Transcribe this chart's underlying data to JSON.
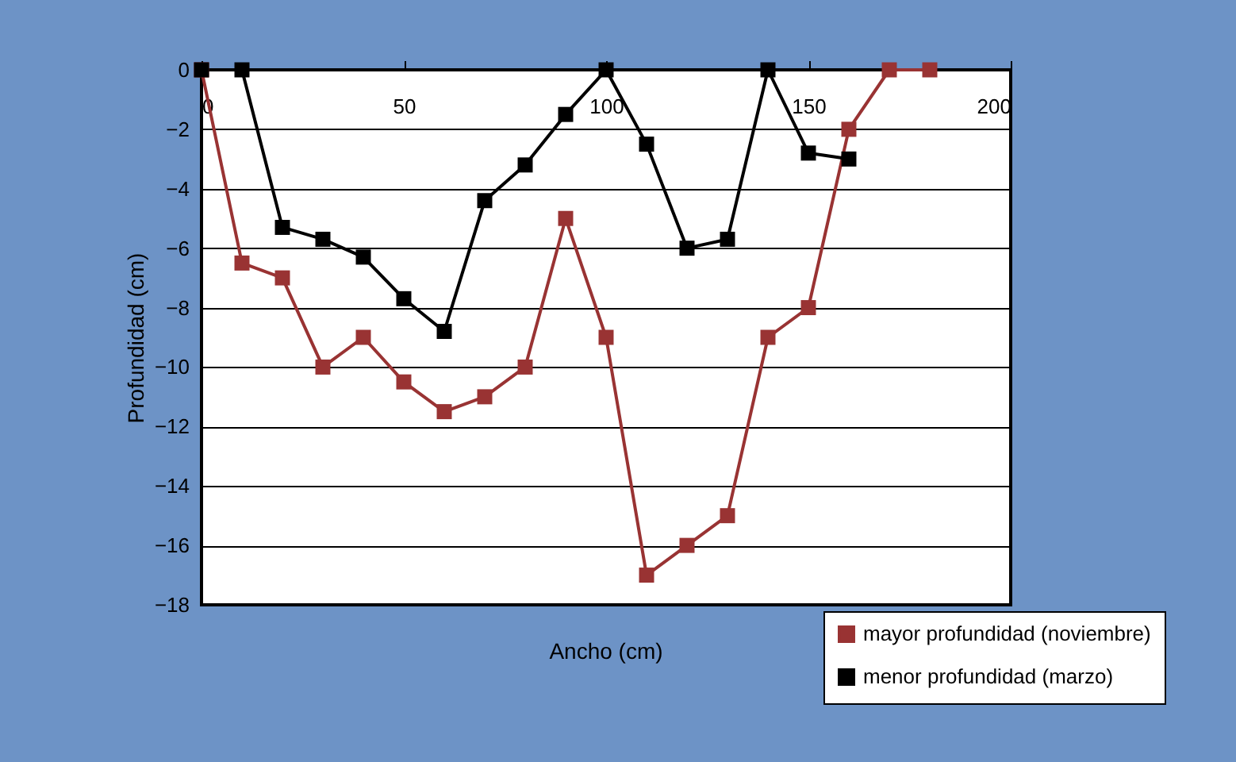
{
  "chart_data": {
    "type": "line",
    "xlabel": "Ancho (cm)",
    "ylabel": "Profundidad (cm)",
    "xlim": [
      0,
      200
    ],
    "xticks": [
      0,
      50,
      100,
      150,
      200
    ],
    "ylim": [
      -18,
      0
    ],
    "yticks": [
      0,
      -2,
      -4,
      -6,
      -8,
      -10,
      -12,
      -14,
      -16,
      -18
    ],
    "grid": "y",
    "legend": "bottom right",
    "marker": "square",
    "line_style": "solid",
    "series": [
      {
        "name": "mayor profundidad (noviembre)",
        "color": "#993333",
        "x": [
          0,
          10,
          20,
          30,
          40,
          50,
          60,
          70,
          80,
          90,
          100,
          110,
          120,
          130,
          140,
          150,
          160,
          170,
          180
        ],
        "values": [
          0,
          -6.5,
          -7,
          -10,
          -9,
          -10.5,
          -11.5,
          -11,
          -10,
          -5,
          -9,
          -17,
          -16,
          -15,
          -9,
          -8,
          -2,
          0,
          0
        ]
      },
      {
        "name": "menor profundidad (marzo)",
        "color": "#000000",
        "x": [
          0,
          10,
          20,
          30,
          40,
          50,
          60,
          70,
          80,
          90,
          100,
          110,
          120,
          130,
          140,
          150,
          160
        ],
        "values": [
          0,
          0,
          -5.3,
          -5.7,
          -6.3,
          -7.7,
          -8.8,
          -4.4,
          -3.2,
          -1.5,
          0,
          -2.5,
          -6,
          -5.7,
          0,
          -2.8,
          -3
        ]
      }
    ]
  }
}
